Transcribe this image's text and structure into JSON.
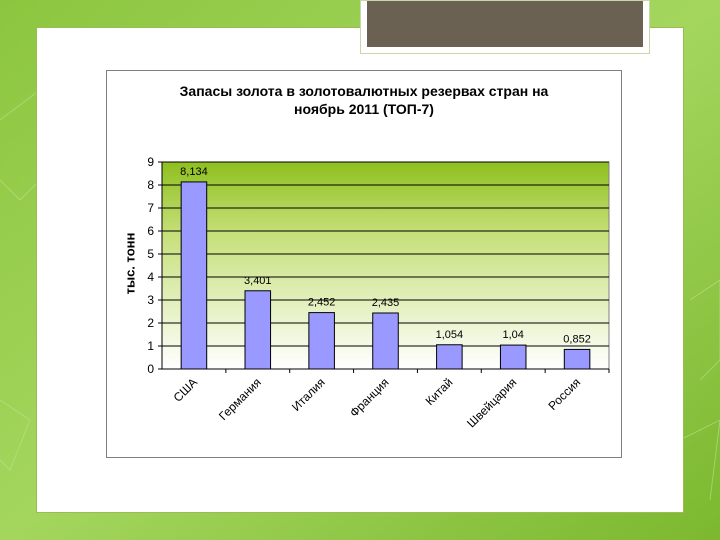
{
  "chart_data": {
    "type": "bar",
    "title_lines": [
      "Запасы  золота в  золотовалютных резервах стран на",
      "ноябрь 2011 (ТОП-7)"
    ],
    "ylabel": "тыс. тонн",
    "xlabel": "",
    "categories": [
      "США",
      "Германия",
      "Италия",
      "Франция",
      "Китай",
      "Швейцария",
      "Россия"
    ],
    "values": [
      8.134,
      3.401,
      2.452,
      2.435,
      1.054,
      1.04,
      0.852
    ],
    "value_labels": [
      "8,134",
      "3,401",
      "2,452",
      "2,435",
      "1,054",
      "1,04",
      "0,852"
    ],
    "ylim": [
      0,
      9
    ],
    "yticks": [
      "0",
      "1",
      "2",
      "3",
      "4",
      "5",
      "6",
      "7",
      "8",
      "9"
    ],
    "grid": true,
    "legend": "none",
    "colors": {
      "bar_fill": "#9999ff",
      "bar_stroke": "#000000",
      "plot_top": "#8fbf1f",
      "plot_bottom": "#ffffff",
      "grid": "#000000"
    }
  }
}
